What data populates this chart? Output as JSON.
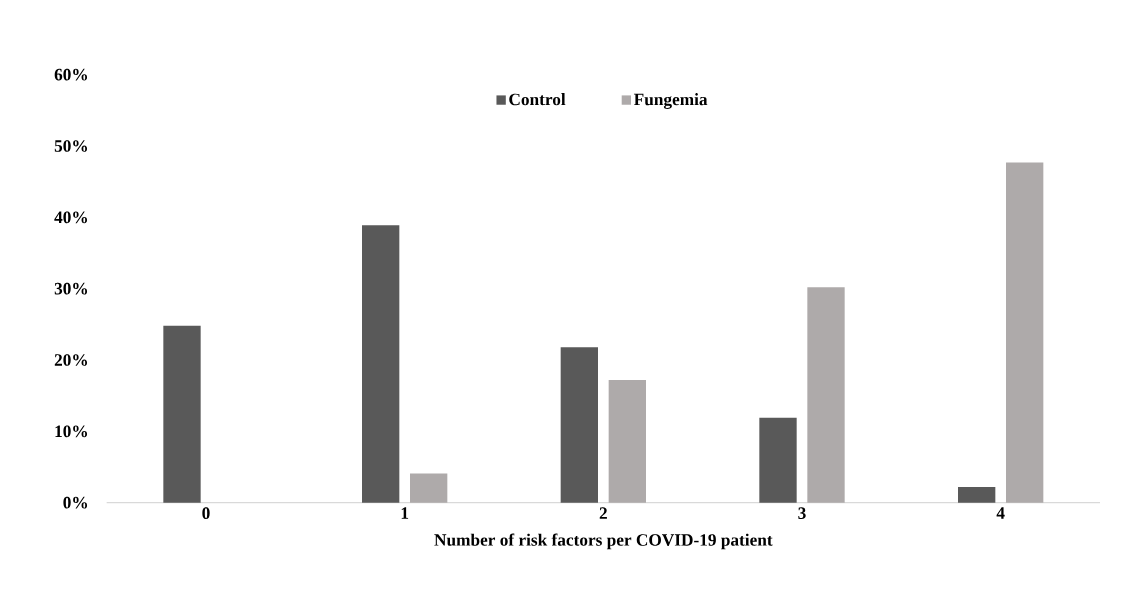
{
  "chart_data": {
    "type": "bar",
    "xlabel": "Number of risk factors per COVID-19 patient",
    "categories": [
      "0",
      "1",
      "2",
      "3",
      "4"
    ],
    "series": [
      {
        "name": "Control",
        "color": "#595959",
        "values": [
          24.8,
          38.9,
          21.8,
          11.9,
          2.2
        ]
      },
      {
        "name": "Fungemia",
        "color": "#aeaaaa",
        "values": [
          0,
          4.1,
          17.2,
          30.2,
          47.7
        ]
      }
    ],
    "ylim": [
      0,
      60
    ],
    "yticks": [
      {
        "value": 0,
        "label": "0%"
      },
      {
        "value": 10,
        "label": "10%"
      },
      {
        "value": 20,
        "label": "20%"
      },
      {
        "value": 30,
        "label": "30%"
      },
      {
        "value": 40,
        "label": "40%"
      },
      {
        "value": 50,
        "label": "50%"
      },
      {
        "value": 60,
        "label": "60%"
      }
    ],
    "grid": false,
    "legend": "top"
  }
}
